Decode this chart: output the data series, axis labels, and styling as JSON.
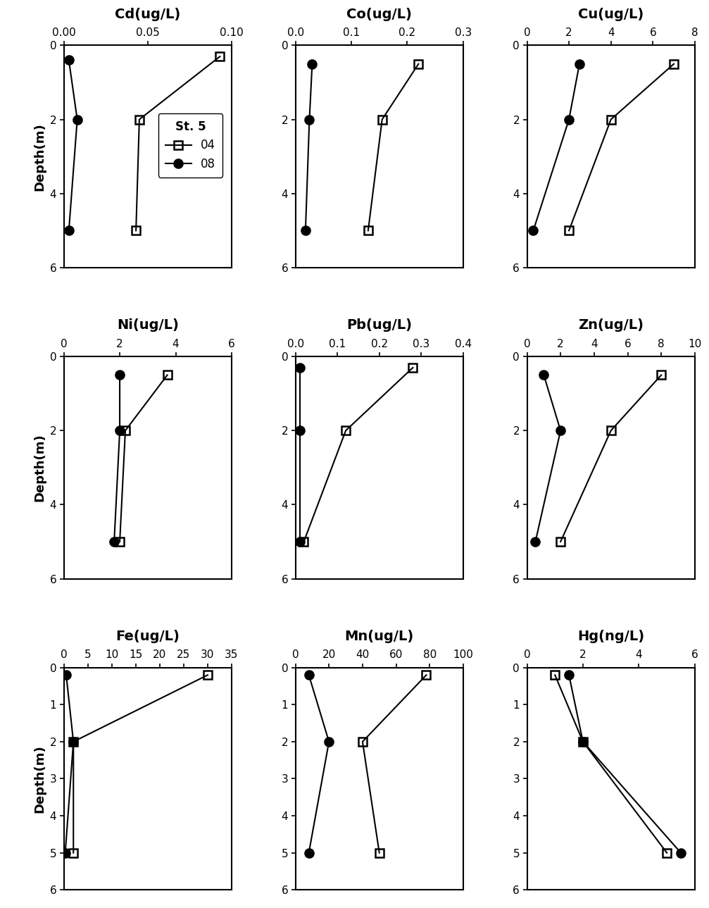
{
  "panels": [
    {
      "title": "Cd(ug/L)",
      "xlim": [
        0,
        0.1
      ],
      "xticks": [
        0.0,
        0.05,
        0.1
      ],
      "xticklabels": [
        "0.00",
        "0.05",
        "0.10"
      ],
      "ylim": [
        6,
        0
      ],
      "yticks": [
        0,
        2,
        4,
        6
      ],
      "series_04": {
        "x": [
          0.093,
          0.045,
          0.043
        ],
        "y": [
          0.3,
          2,
          5
        ]
      },
      "series_08": {
        "x": [
          0.003,
          0.008,
          0.003
        ],
        "y": [
          0.4,
          2,
          5
        ]
      }
    },
    {
      "title": "Co(ug/L)",
      "xlim": [
        0,
        0.3
      ],
      "xticks": [
        0.0,
        0.1,
        0.2,
        0.3
      ],
      "xticklabels": [
        "0.0",
        "0.1",
        "0.2",
        "0.3"
      ],
      "ylim": [
        6,
        0
      ],
      "yticks": [
        0,
        2,
        4,
        6
      ],
      "series_04": {
        "x": [
          0.22,
          0.155,
          0.13
        ],
        "y": [
          0.5,
          2,
          5
        ]
      },
      "series_08": {
        "x": [
          0.03,
          0.025,
          0.018
        ],
        "y": [
          0.5,
          2,
          5
        ]
      }
    },
    {
      "title": "Cu(ug/L)",
      "xlim": [
        0,
        8
      ],
      "xticks": [
        0,
        2,
        4,
        6,
        8
      ],
      "xticklabels": [
        "0",
        "2",
        "4",
        "6",
        "8"
      ],
      "ylim": [
        6,
        0
      ],
      "yticks": [
        0,
        2,
        4,
        6
      ],
      "series_04": {
        "x": [
          7.0,
          4.0,
          2.0
        ],
        "y": [
          0.5,
          2,
          5
        ]
      },
      "series_08": {
        "x": [
          2.5,
          2.0,
          0.3
        ],
        "y": [
          0.5,
          2,
          5
        ]
      }
    },
    {
      "title": "Ni(ug/L)",
      "xlim": [
        0,
        6
      ],
      "xticks": [
        0,
        2,
        4,
        6
      ],
      "xticklabels": [
        "0",
        "2",
        "4",
        "6"
      ],
      "ylim": [
        6,
        0
      ],
      "yticks": [
        0,
        2,
        4,
        6
      ],
      "series_04": {
        "x": [
          3.7,
          2.2,
          2.0
        ],
        "y": [
          0.5,
          2,
          5
        ]
      },
      "series_08": {
        "x": [
          2.0,
          2.0,
          1.8
        ],
        "y": [
          0.5,
          2,
          5
        ]
      }
    },
    {
      "title": "Pb(ug/L)",
      "xlim": [
        0,
        0.4
      ],
      "xticks": [
        0.0,
        0.1,
        0.2,
        0.3,
        0.4
      ],
      "xticklabels": [
        "0.0",
        "0.1",
        "0.2",
        "0.3",
        "0.4"
      ],
      "ylim": [
        6,
        0
      ],
      "yticks": [
        0,
        2,
        4,
        6
      ],
      "series_04": {
        "x": [
          0.28,
          0.12,
          0.02
        ],
        "y": [
          0.3,
          2,
          5
        ]
      },
      "series_08": {
        "x": [
          0.01,
          0.01,
          0.01
        ],
        "y": [
          0.3,
          2,
          5
        ]
      }
    },
    {
      "title": "Zn(ug/L)",
      "xlim": [
        0,
        10
      ],
      "xticks": [
        0,
        2,
        4,
        6,
        8,
        10
      ],
      "xticklabels": [
        "0",
        "2",
        "4",
        "6",
        "8",
        "10"
      ],
      "ylim": [
        6,
        0
      ],
      "yticks": [
        0,
        2,
        4,
        6
      ],
      "series_04": {
        "x": [
          8.0,
          5.0,
          2.0
        ],
        "y": [
          0.5,
          2,
          5
        ]
      },
      "series_08": {
        "x": [
          1.0,
          2.0,
          0.5
        ],
        "y": [
          0.5,
          2,
          5
        ]
      }
    },
    {
      "title": "Fe(ug/L)",
      "xlim": [
        0,
        35
      ],
      "xticks": [
        0,
        5,
        10,
        15,
        20,
        25,
        30,
        35
      ],
      "xticklabels": [
        "0",
        "5",
        "10",
        "15",
        "20",
        "25",
        "30",
        "35"
      ],
      "ylim": [
        6,
        0
      ],
      "yticks": [
        0,
        1,
        2,
        3,
        4,
        5,
        6
      ],
      "series_04": {
        "x": [
          30.0,
          2.0,
          2.0
        ],
        "y": [
          0.2,
          2,
          5
        ]
      },
      "series_08": {
        "x": [
          0.5,
          2.0,
          0.3
        ],
        "y": [
          0.2,
          2,
          5
        ]
      }
    },
    {
      "title": "Mn(ug/L)",
      "xlim": [
        0,
        100
      ],
      "xticks": [
        0,
        20,
        40,
        60,
        80,
        100
      ],
      "xticklabels": [
        "0",
        "20",
        "40",
        "60",
        "80",
        "100"
      ],
      "ylim": [
        6,
        0
      ],
      "yticks": [
        0,
        1,
        2,
        3,
        4,
        5,
        6
      ],
      "series_04": {
        "x": [
          78.0,
          40.0,
          50.0
        ],
        "y": [
          0.2,
          2,
          5
        ]
      },
      "series_08": {
        "x": [
          8.0,
          20.0,
          8.0
        ],
        "y": [
          0.2,
          2,
          5
        ]
      }
    },
    {
      "title": "Hg(ng/L)",
      "xlim": [
        0,
        6
      ],
      "xticks": [
        0,
        2,
        4,
        6
      ],
      "xticklabels": [
        "0",
        "2",
        "4",
        "6"
      ],
      "ylim": [
        6,
        0
      ],
      "yticks": [
        0,
        1,
        2,
        3,
        4,
        5,
        6
      ],
      "series_04": {
        "x": [
          1.0,
          2.0,
          5.0
        ],
        "y": [
          0.2,
          2,
          5
        ]
      },
      "series_08": {
        "x": [
          1.5,
          2.0,
          5.5
        ],
        "y": [
          0.2,
          2,
          5
        ]
      }
    }
  ],
  "ylabel": "Depth(m)",
  "legend_label_04": "04",
  "legend_label_08": "08",
  "color": "black",
  "marker_04": "s",
  "marker_08": "o",
  "linewidth": 1.5,
  "markersize": 9,
  "bg_color": "white",
  "title_fontsize": 14,
  "label_fontsize": 13,
  "tick_fontsize": 11
}
